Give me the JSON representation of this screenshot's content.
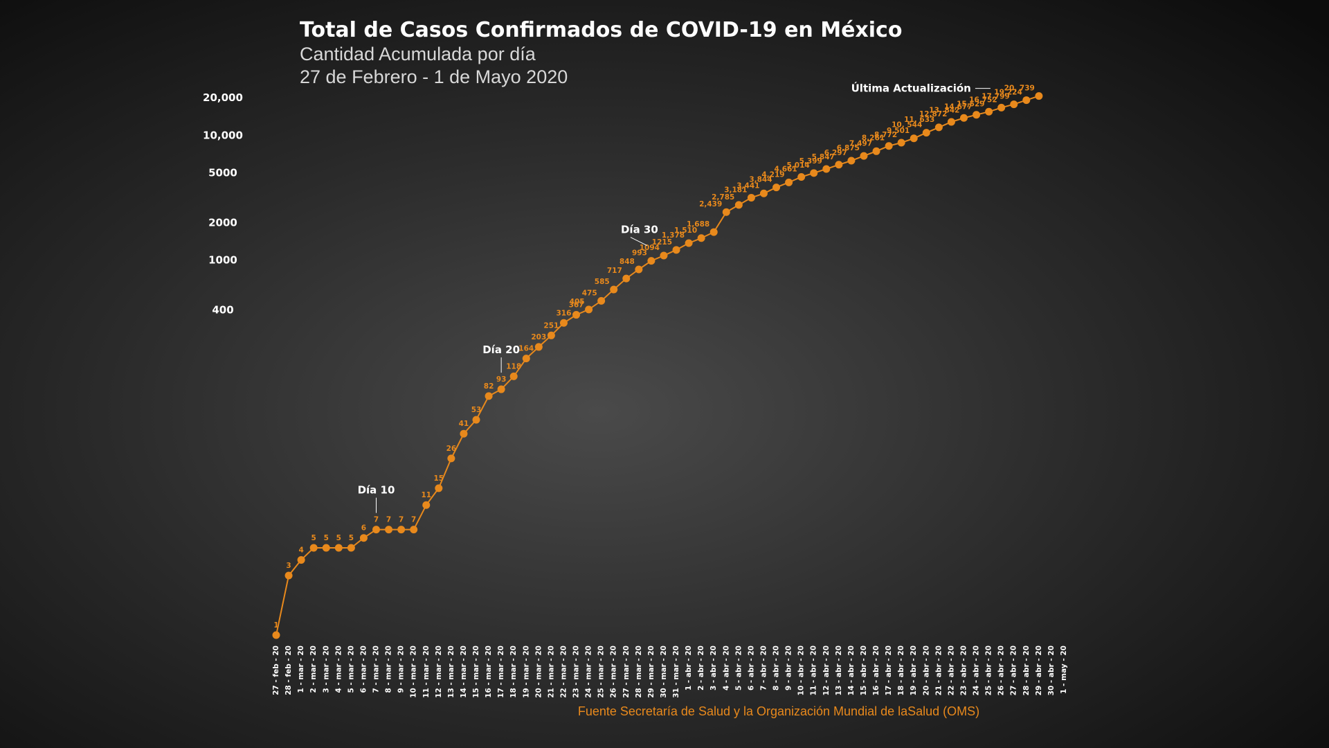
{
  "chart_data": {
    "type": "line",
    "title": "Total de Casos Confirmados de COVID-19 en México",
    "subtitle": "Cantidad Acumulada por día",
    "date_range": "27 de Febrero -  1 de Mayo 2020",
    "source": "Fuente Secretaría de Salud y la Organización Mundial de laSalud (OMS)",
    "annotations": [
      "Día 10",
      "Día 20",
      "Día 30",
      "Última Actualización"
    ],
    "categories": [
      "27 - feb - 20",
      "28 - feb - 20",
      "1 - mar - 20",
      "2 - mar - 20",
      "3 - mar - 20",
      "4 - mar - 20",
      "5 - mar - 20",
      "6 - mar - 20",
      "7 - mar - 20",
      "8 - mar - 20",
      "9 - mar - 20",
      "10 - mar - 20",
      "11 - mar - 20",
      "12 - mar - 20",
      "13 - mar - 20",
      "14 - mar - 20",
      "15 - mar - 20",
      "16 - mar - 20",
      "17 - mar - 20",
      "18 - mar - 20",
      "19 - mar - 20",
      "20 - mar - 20",
      "21 - mar - 20",
      "22 - mar - 20",
      "23 - mar - 20",
      "24 - mar - 20",
      "25 - mar - 20",
      "26 - mar - 20",
      "27 - mar - 20",
      "28 - mar - 20",
      "29 - mar - 20",
      "30 - mar - 20",
      "31 - mar - 20",
      "1 - abr - 20",
      "2 - abr - 20",
      "3 - abr - 20",
      "4 - abr - 20",
      "5 - abr - 20",
      "6 - abr - 20",
      "7 - abr - 20",
      "8 - abr - 20",
      "9 - abr - 20",
      "10 - abr - 20",
      "11 - abr - 20",
      "12 - abr - 20",
      "13 - abr - 20",
      "14 - abr - 20",
      "15 - abr - 20",
      "16 - abr - 20",
      "17 - abr - 20",
      "18 - abr - 20",
      "19 - abr - 20",
      "20 - abr - 20",
      "21 - abr - 20",
      "22 - abr - 20",
      "23 - abr - 20",
      "24 - abr - 20",
      "25 - abr - 20",
      "26 - abr - 20",
      "27 - abr - 20",
      "28 - abr - 20",
      "29 - abr - 20",
      "30 - abr - 20",
      "1 - may - 20"
    ],
    "values": [
      1,
      3,
      4,
      5,
      5,
      5,
      5,
      6,
      7,
      7,
      7,
      7,
      11,
      15,
      26,
      41,
      53,
      82,
      93,
      118,
      164,
      203,
      251,
      316,
      367,
      405,
      475,
      585,
      717,
      848,
      993,
      1094,
      1215,
      1378,
      1510,
      1688,
      2439,
      2785,
      3181,
      3441,
      3844,
      4219,
      4661,
      5014,
      5399,
      5847,
      6297,
      6875,
      7497,
      8261,
      8772,
      9501,
      10544,
      11633,
      12872,
      13842,
      14677,
      15529,
      16752,
      17799,
      19224,
      20739,
      null,
      null
    ],
    "value_labels": [
      "1",
      "3",
      "4",
      "5",
      "5",
      "5",
      "5",
      "6",
      "7",
      "7",
      "7",
      "7",
      "11",
      "15",
      "26",
      "41",
      "53",
      "82",
      "93",
      "118",
      "164",
      "203",
      "251",
      "316",
      "367",
      "405",
      "475",
      "585",
      "717",
      "848",
      "993",
      "1094",
      "1215",
      "1,378",
      "1,510",
      "1,688",
      "2,439",
      "2,785",
      "3,181",
      "3,441",
      "3,844",
      "4,219",
      "4,661",
      "5,014",
      "5,399",
      "5,847",
      "6,297",
      "6,875",
      "7,497",
      "8,261",
      "8,772",
      "9,501",
      "10, 544",
      "11, 633",
      "12,872",
      "13, 842",
      "14,677",
      "15,529",
      "16,752",
      "17,799",
      "19,224",
      "20, 739",
      null,
      null
    ],
    "color": "#e8891c",
    "log_scale": true,
    "ylim": [
      1,
      25000
    ],
    "yticks": [
      400,
      1000,
      2000,
      5000,
      {
        "value": 10000,
        "label": "10,000"
      },
      {
        "value": 20000,
        "label": "20,000"
      }
    ],
    "grid": false
  }
}
